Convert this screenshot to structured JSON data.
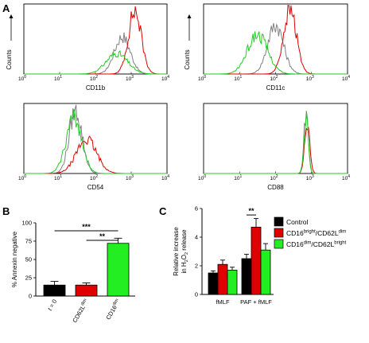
{
  "panel_labels": {
    "a": "A",
    "b": "B",
    "c": "C"
  },
  "panel_a": {
    "y_label": "Counts",
    "x_ticks": [
      "10",
      "10",
      "10",
      "10",
      "10"
    ],
    "x_tick_exponents": [
      "0",
      "1",
      "2",
      "3",
      "4"
    ],
    "colors": {
      "control": "#808080",
      "cd16bright": "#e00000",
      "cd16dim": "#22cc22"
    },
    "histograms": [
      {
        "marker": "CD11b"
      },
      {
        "marker": "CD11c"
      },
      {
        "marker": "CD54"
      },
      {
        "marker": "CD88"
      }
    ]
  },
  "chart_data": [
    {
      "type": "bar",
      "ylabel": "% Annexin negative",
      "ylim": [
        0,
        100
      ],
      "y_ticks": [
        "0",
        "25",
        "50",
        "75",
        "100"
      ],
      "categories": [
        {
          "base": "t",
          "suffix": " = 0",
          "sup": ""
        },
        {
          "base": "CD62L",
          "suffix": "",
          "sup": "dim"
        },
        {
          "base": "CD16",
          "suffix": "",
          "sup": "dim"
        }
      ],
      "values": [
        15,
        15,
        72
      ],
      "errors": [
        5,
        3,
        7
      ],
      "colors": [
        "#000000",
        "#e00000",
        "#22ee22"
      ],
      "significance": [
        "***",
        "**"
      ]
    },
    {
      "type": "bar",
      "ylabel_lines": [
        "Relative increase",
        "in H",
        "O",
        "release"
      ],
      "ylabel_subscripts": [
        "2",
        "2"
      ],
      "ylim": [
        0,
        6
      ],
      "y_ticks": [
        "0",
        "2",
        "4",
        "6"
      ],
      "categories": [
        "fMLF",
        "PAF + fMLF"
      ],
      "series": [
        {
          "base": "Control",
          "sup1": "",
          "mid": "",
          "sup2": "",
          "values": [
            1.5,
            2.5
          ],
          "errors": [
            0.15,
            0.3
          ],
          "color": "#000000"
        },
        {
          "base": "CD16",
          "sup1": "bright",
          "mid": "/CD62L",
          "sup2": "dim",
          "values": [
            2.1,
            4.7
          ],
          "errors": [
            0.3,
            0.6
          ],
          "color": "#e00000"
        },
        {
          "base": "CD16",
          "sup1": "dim",
          "mid": "/CD62L",
          "sup2": "bright",
          "values": [
            1.7,
            3.1
          ],
          "errors": [
            0.2,
            0.45
          ],
          "color": "#22ee22"
        }
      ],
      "significance": [
        "**"
      ]
    }
  ]
}
